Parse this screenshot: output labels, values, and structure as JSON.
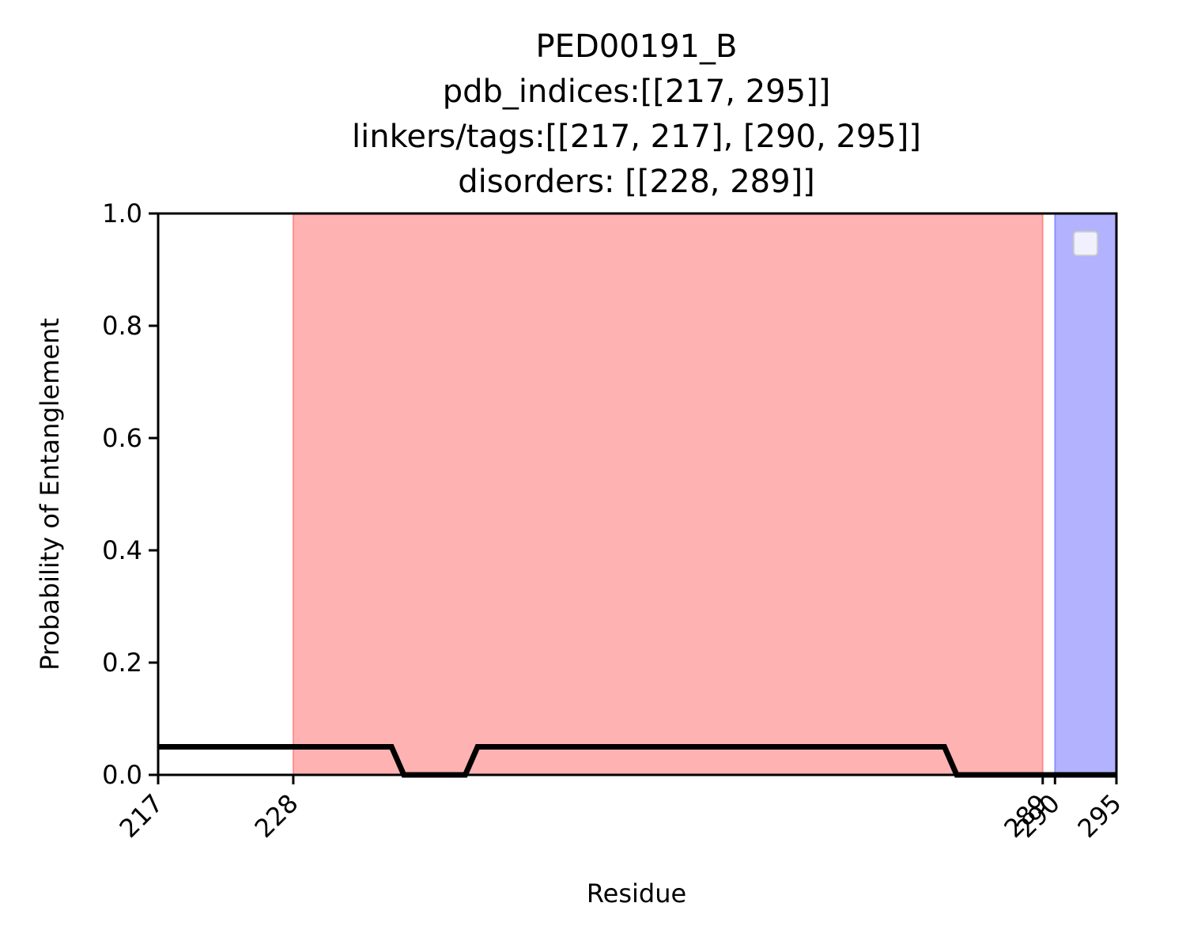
{
  "chart_data": {
    "type": "line",
    "title_lines": [
      "PED00191_B",
      "pdb_indices:[[217, 295]]",
      "linkers/tags:[[217, 217], [290, 295]]",
      "disorders: [[228, 289]]"
    ],
    "xlabel": "Residue",
    "ylabel": "Probability of Entanglement",
    "xlim": [
      217,
      295
    ],
    "ylim": [
      0,
      1.0
    ],
    "x_ticks": [
      217,
      228,
      289,
      290,
      295
    ],
    "y_ticks": [
      "0.0",
      "0.2",
      "0.4",
      "0.6",
      "0.8",
      "1.0"
    ],
    "grid": false,
    "legend": {
      "placement": "upper-right",
      "entries": []
    },
    "spans": [
      {
        "kind": "disorder",
        "x_start": 228,
        "x_end": 289,
        "color": "#ff6666"
      },
      {
        "kind": "linker/tag",
        "x_start": 290,
        "x_end": 295,
        "color": "#6666ff"
      }
    ],
    "series": [
      {
        "color": "#000000",
        "x": [
          217,
          236,
          237,
          242,
          243,
          281,
          282,
          295
        ],
        "y": [
          0.05,
          0.05,
          0.0,
          0.0,
          0.05,
          0.05,
          0.0,
          0.0
        ]
      }
    ]
  }
}
